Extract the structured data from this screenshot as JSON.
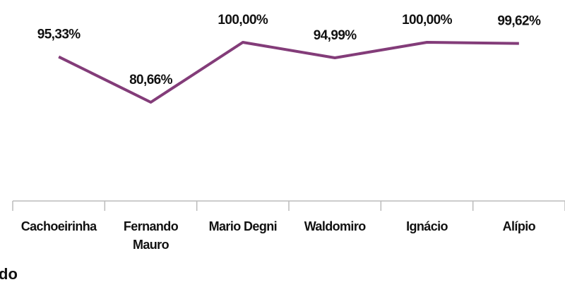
{
  "chart_data": {
    "type": "line",
    "categories": [
      "Cachoeirinha",
      "Fernando Mauro",
      "Mario Degni",
      "Waldomiro",
      "Ignácio",
      "Alípio"
    ],
    "series": [
      {
        "color": "#833c79",
        "values": [
          95.33,
          80.66,
          100,
          94.99,
          100,
          99.62
        ],
        "value_labels": [
          "95,33%",
          "80,66%",
          "100,00%",
          "94,99%",
          "100,00%",
          "99,62%"
        ]
      }
    ]
  },
  "caption": "do"
}
